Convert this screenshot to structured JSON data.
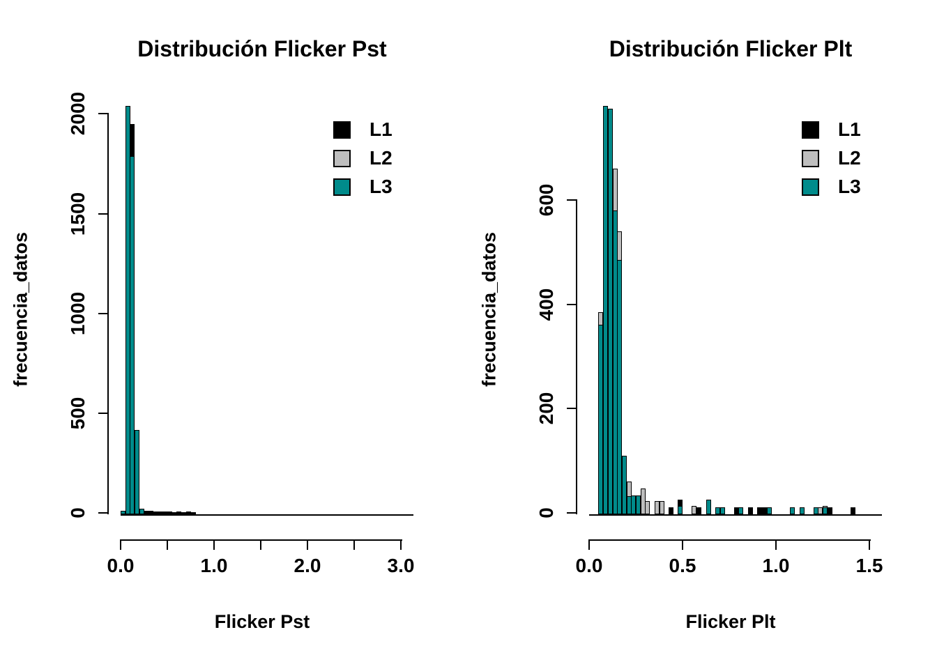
{
  "figure": {
    "background": "#ffffff"
  },
  "chart_data": [
    {
      "type": "histogram",
      "panel": "left",
      "title": "Distribución Flicker Pst",
      "xlabel": "Flicker Pst",
      "ylabel": "frecuencia_datos",
      "series": [
        {
          "name": "L1",
          "color": "#000000"
        },
        {
          "name": "L2",
          "color": "#BEBEBE"
        },
        {
          "name": "L3",
          "color": "#008B8B"
        }
      ],
      "legend_position": "top-right",
      "xlim": [
        0,
        3.0
      ],
      "ylim": [
        0,
        2040
      ],
      "bin_width": 0.05,
      "xticks": [
        {
          "v": 0.0,
          "label": "0.0"
        },
        {
          "v": 0.5,
          "label": ""
        },
        {
          "v": 1.0,
          "label": "1.0"
        },
        {
          "v": 1.5,
          "label": ""
        },
        {
          "v": 2.0,
          "label": "2.0"
        },
        {
          "v": 2.5,
          "label": ""
        },
        {
          "v": 3.0,
          "label": "3.0"
        }
      ],
      "yticks": [
        {
          "v": 0,
          "label": "0"
        },
        {
          "v": 500,
          "label": "500"
        },
        {
          "v": 1000,
          "label": "1000"
        },
        {
          "v": 1500,
          "label": "1500"
        },
        {
          "v": 2000,
          "label": "2000"
        }
      ],
      "bins": [
        {
          "x": 0.0,
          "seg": [
            [
              "L3",
              10
            ]
          ]
        },
        {
          "x": 0.05,
          "seg": [
            [
              "L3",
              2040
            ]
          ]
        },
        {
          "x": 0.1,
          "seg": [
            [
              "L1",
              1950
            ],
            [
              "L3",
              1790
            ]
          ]
        },
        {
          "x": 0.15,
          "seg": [
            [
              "L3",
              415
            ]
          ]
        },
        {
          "x": 0.2,
          "seg": [
            [
              "L3",
              22
            ]
          ]
        },
        {
          "x": 0.25,
          "seg": [
            [
              "L1",
              12
            ]
          ]
        },
        {
          "x": 0.3,
          "seg": [
            [
              "L1",
              10
            ]
          ]
        },
        {
          "x": 0.35,
          "seg": [
            [
              "L1",
              8
            ]
          ]
        },
        {
          "x": 0.4,
          "seg": [
            [
              "L1",
              7
            ]
          ]
        },
        {
          "x": 0.45,
          "seg": [
            [
              "L1",
              6
            ]
          ]
        },
        {
          "x": 0.5,
          "seg": [
            [
              "L1",
              6
            ]
          ]
        },
        {
          "x": 0.55,
          "seg": [
            [
              "L1",
              5
            ]
          ]
        },
        {
          "x": 0.6,
          "seg": [
            [
              "L1",
              6
            ]
          ]
        },
        {
          "x": 0.65,
          "seg": [
            [
              "L1",
              5
            ]
          ]
        },
        {
          "x": 0.7,
          "seg": [
            [
              "L1",
              6
            ]
          ]
        },
        {
          "x": 0.75,
          "seg": [
            [
              "L1",
              5
            ]
          ]
        }
      ]
    },
    {
      "type": "histogram",
      "panel": "right",
      "title": "Distribución Flicker Plt",
      "xlabel": "Flicker Plt",
      "ylabel": "frecuencia_datos",
      "series": [
        {
          "name": "L1",
          "color": "#000000"
        },
        {
          "name": "L2",
          "color": "#BEBEBE"
        },
        {
          "name": "L3",
          "color": "#008B8B"
        }
      ],
      "legend_position": "top-right",
      "xlim": [
        0,
        1.5
      ],
      "ylim": [
        0,
        780
      ],
      "bin_width": 0.025,
      "xticks": [
        {
          "v": 0.0,
          "label": "0.0"
        },
        {
          "v": 0.5,
          "label": "0.5"
        },
        {
          "v": 1.0,
          "label": "1.0"
        },
        {
          "v": 1.5,
          "label": "1.5"
        }
      ],
      "yticks": [
        {
          "v": 0,
          "label": "0"
        },
        {
          "v": 200,
          "label": "200"
        },
        {
          "v": 400,
          "label": "400"
        },
        {
          "v": 600,
          "label": "600"
        }
      ],
      "bins": [
        {
          "x": 0.05,
          "seg": [
            [
              "L2",
              385
            ],
            [
              "L3",
              360
            ]
          ]
        },
        {
          "x": 0.075,
          "seg": [
            [
              "L3",
              780
            ]
          ]
        },
        {
          "x": 0.1,
          "seg": [
            [
              "L3",
              775
            ]
          ]
        },
        {
          "x": 0.125,
          "seg": [
            [
              "L2",
              660
            ],
            [
              "L3",
              580
            ]
          ]
        },
        {
          "x": 0.15,
          "seg": [
            [
              "L2",
              540
            ],
            [
              "L3",
              485
            ]
          ]
        },
        {
          "x": 0.175,
          "seg": [
            [
              "L3",
              110
            ]
          ]
        },
        {
          "x": 0.2,
          "seg": [
            [
              "L2",
              60
            ],
            [
              "L3",
              32
            ]
          ]
        },
        {
          "x": 0.225,
          "seg": [
            [
              "L3",
              34
            ]
          ]
        },
        {
          "x": 0.25,
          "seg": [
            [
              "L3",
              34
            ]
          ]
        },
        {
          "x": 0.275,
          "seg": [
            [
              "L2",
              47
            ]
          ]
        },
        {
          "x": 0.3,
          "seg": [
            [
              "L2",
              23
            ]
          ]
        },
        {
          "x": 0.35,
          "seg": [
            [
              "L2",
              23
            ]
          ]
        },
        {
          "x": 0.375,
          "seg": [
            [
              "L2",
              23
            ]
          ]
        },
        {
          "x": 0.425,
          "seg": [
            [
              "L1",
              11
            ]
          ]
        },
        {
          "x": 0.475,
          "seg": [
            [
              "L1",
              25
            ],
            [
              "L3",
              13
            ]
          ]
        },
        {
          "x": 0.55,
          "seg": [
            [
              "L2",
              13
            ]
          ]
        },
        {
          "x": 0.575,
          "seg": [
            [
              "L1",
              11
            ]
          ]
        },
        {
          "x": 0.625,
          "seg": [
            [
              "L3",
              25
            ]
          ]
        },
        {
          "x": 0.675,
          "seg": [
            [
              "L3",
              11
            ]
          ]
        },
        {
          "x": 0.7,
          "seg": [
            [
              "L3",
              11
            ]
          ]
        },
        {
          "x": 0.775,
          "seg": [
            [
              "L1",
              11
            ]
          ]
        },
        {
          "x": 0.8,
          "seg": [
            [
              "L3",
              11
            ]
          ]
        },
        {
          "x": 0.85,
          "seg": [
            [
              "L1",
              11
            ]
          ]
        },
        {
          "x": 0.9,
          "seg": [
            [
              "L1",
              11
            ]
          ]
        },
        {
          "x": 0.925,
          "seg": [
            [
              "L1",
              11
            ]
          ]
        },
        {
          "x": 0.95,
          "seg": [
            [
              "L3",
              11
            ]
          ]
        },
        {
          "x": 1.075,
          "seg": [
            [
              "L3",
              11
            ]
          ]
        },
        {
          "x": 1.125,
          "seg": [
            [
              "L3",
              11
            ]
          ]
        },
        {
          "x": 1.2,
          "seg": [
            [
              "L3",
              11
            ]
          ]
        },
        {
          "x": 1.225,
          "seg": [
            [
              "L2",
              11
            ]
          ]
        },
        {
          "x": 1.25,
          "seg": [
            [
              "L2",
              13
            ],
            [
              "L3",
              11
            ]
          ]
        },
        {
          "x": 1.275,
          "seg": [
            [
              "L1",
              11
            ]
          ]
        },
        {
          "x": 1.4,
          "seg": [
            [
              "L1",
              11
            ]
          ]
        }
      ]
    }
  ]
}
